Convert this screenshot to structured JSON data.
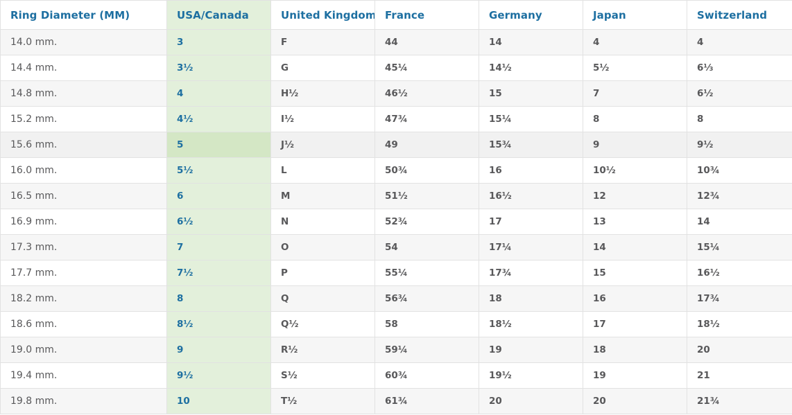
{
  "chart_data": {
    "type": "table",
    "columns": [
      {
        "key": "diameter",
        "label": "Ring Diameter (MM)"
      },
      {
        "key": "usa",
        "label": "USA/Canada"
      },
      {
        "key": "uk",
        "label": "United Kingdom"
      },
      {
        "key": "france",
        "label": "France"
      },
      {
        "key": "germany",
        "label": "Germany"
      },
      {
        "key": "japan",
        "label": "Japan"
      },
      {
        "key": "switzerland",
        "label": "Switzerland"
      }
    ],
    "rows": [
      {
        "diameter": "14.0 mm.",
        "usa": "3",
        "uk": "F",
        "france": "44",
        "germany": "14",
        "japan": "4",
        "switzerland": "4",
        "highlighted": false
      },
      {
        "diameter": "14.4 mm.",
        "usa": "3½",
        "uk": "G",
        "france": "45¼",
        "germany": "14½",
        "japan": "5½",
        "switzerland": "6⅓",
        "highlighted": false
      },
      {
        "diameter": "14.8 mm.",
        "usa": "4",
        "uk": "H½",
        "france": "46½",
        "germany": "15",
        "japan": "7",
        "switzerland": "6½",
        "highlighted": false
      },
      {
        "diameter": "15.2 mm.",
        "usa": "4½",
        "uk": "I½",
        "france": "47¾",
        "germany": "15¼",
        "japan": "8",
        "switzerland": "8",
        "highlighted": false
      },
      {
        "diameter": "15.6 mm.",
        "usa": "5",
        "uk": "J½",
        "france": "49",
        "germany": "15¾",
        "japan": "9",
        "switzerland": "9½",
        "highlighted": true
      },
      {
        "diameter": "16.0 mm.",
        "usa": "5½",
        "uk": "L",
        "france": "50¾",
        "germany": "16",
        "japan": "10½",
        "switzerland": "10¾",
        "highlighted": false
      },
      {
        "diameter": "16.5 mm.",
        "usa": "6",
        "uk": "M",
        "france": "51½",
        "germany": "16½",
        "japan": "12",
        "switzerland": "12¾",
        "highlighted": false
      },
      {
        "diameter": "16.9 mm.",
        "usa": "6½",
        "uk": "N",
        "france": "52¾",
        "germany": "17",
        "japan": "13",
        "switzerland": "14",
        "highlighted": false
      },
      {
        "diameter": "17.3 mm.",
        "usa": "7",
        "uk": "O",
        "france": "54",
        "germany": "17¼",
        "japan": "14",
        "switzerland": "15¼",
        "highlighted": false
      },
      {
        "diameter": "17.7 mm.",
        "usa": "7½",
        "uk": "P",
        "france": "55¼",
        "germany": "17¾",
        "japan": "15",
        "switzerland": "16½",
        "highlighted": false
      },
      {
        "diameter": "18.2 mm.",
        "usa": "8",
        "uk": "Q",
        "france": "56¾",
        "germany": "18",
        "japan": "16",
        "switzerland": "17¾",
        "highlighted": false
      },
      {
        "diameter": "18.6 mm.",
        "usa": "8½",
        "uk": "Q½",
        "france": "58",
        "germany": "18½",
        "japan": "17",
        "switzerland": "18½",
        "highlighted": false
      },
      {
        "diameter": "19.0 mm.",
        "usa": "9",
        "uk": "R½",
        "france": "59¼",
        "germany": "19",
        "japan": "18",
        "switzerland": "20",
        "highlighted": false
      },
      {
        "diameter": "19.4 mm.",
        "usa": "9½",
        "uk": "S½",
        "france": "60¾",
        "germany": "19½",
        "japan": "19",
        "switzerland": "21",
        "highlighted": false
      },
      {
        "diameter": "19.8 mm.",
        "usa": "10",
        "uk": "T½",
        "france": "61¾",
        "germany": "20",
        "japan": "20",
        "switzerland": "21¾",
        "highlighted": false
      }
    ]
  },
  "colors": {
    "header_text": "#1d6fa1",
    "cell_text": "#58585a",
    "green_light": "#e3f0db",
    "green_dark": "#d4e7c5",
    "row_stripe": "#f6f6f6",
    "row_highlight": "#f1f1f1",
    "border": "#e2e2e2"
  }
}
